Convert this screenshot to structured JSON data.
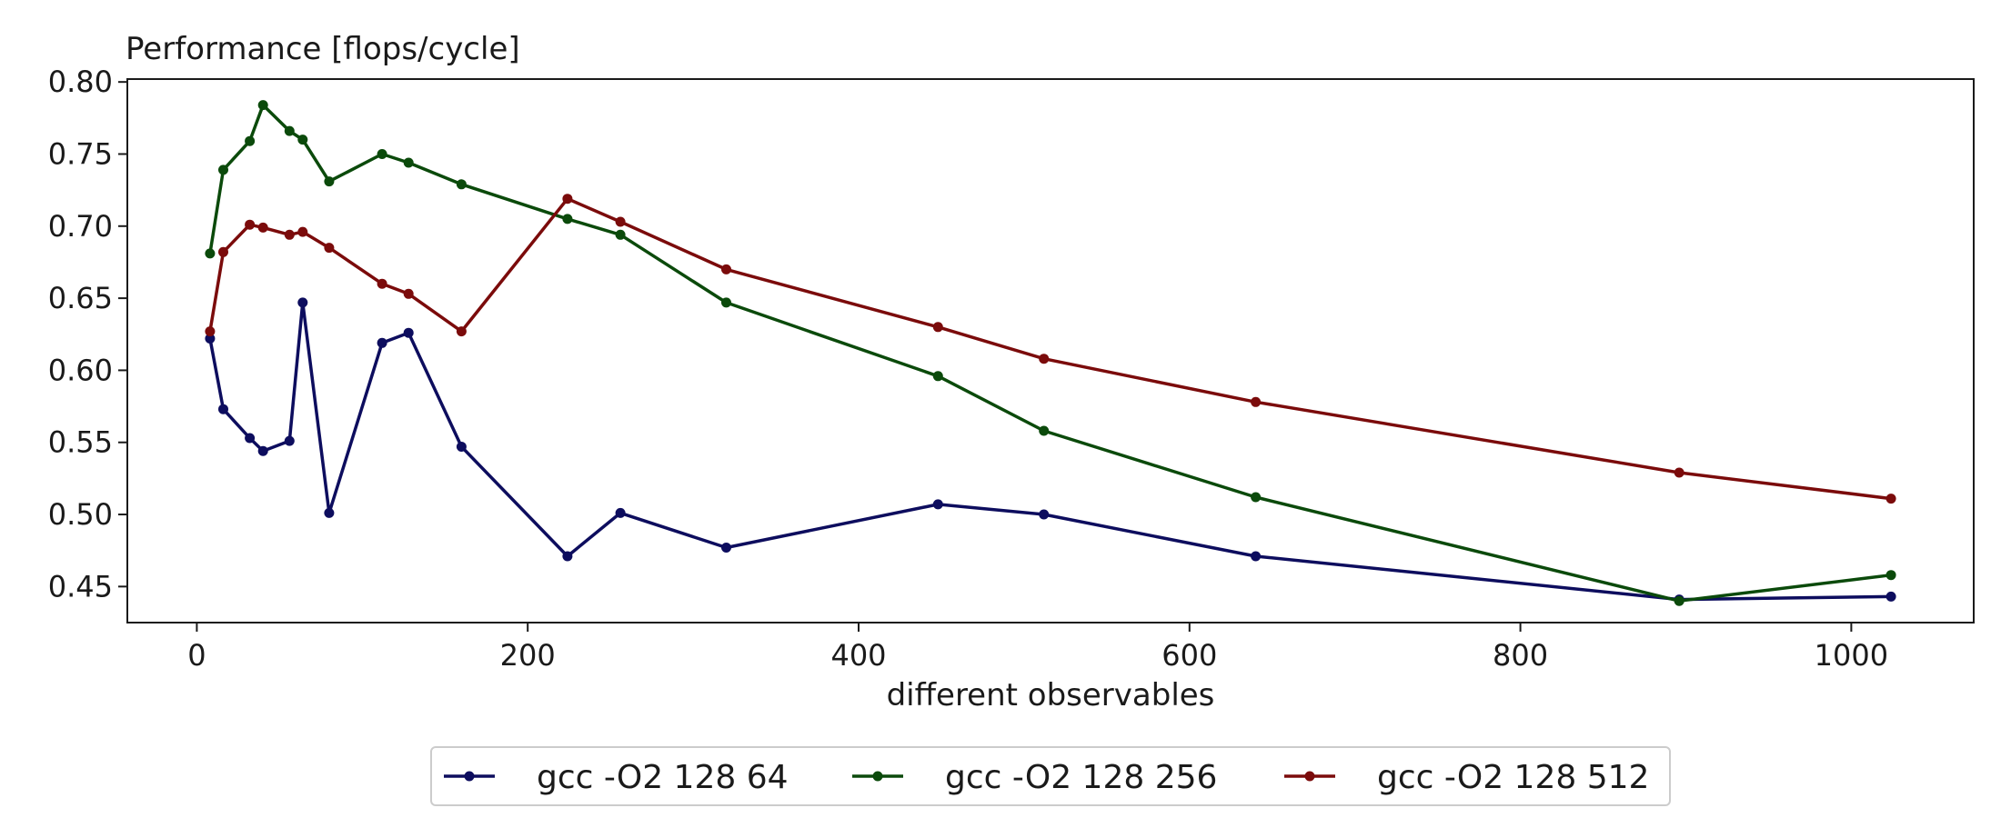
{
  "chart_data": {
    "type": "line",
    "title": "",
    "ylabel": "Performance [flops/cycle]",
    "xlabel": "different observables",
    "xlim": [
      -42,
      1074
    ],
    "ylim": [
      0.425,
      0.802
    ],
    "xticks": [
      0,
      200,
      400,
      600,
      800,
      1000
    ],
    "yticks": [
      0.45,
      0.5,
      0.55,
      0.6,
      0.65,
      0.7,
      0.75,
      0.8
    ],
    "grid": false,
    "legend_position": "bottom-center",
    "series": [
      {
        "name": "gcc -O2 128 64",
        "color": "#0d0d5e",
        "x": [
          8,
          16,
          32,
          40,
          56,
          64,
          80,
          112,
          128,
          160,
          224,
          256,
          320,
          448,
          512,
          640,
          896,
          1024
        ],
        "y": [
          0.622,
          0.573,
          0.553,
          0.544,
          0.551,
          0.647,
          0.501,
          0.619,
          0.626,
          0.547,
          0.471,
          0.501,
          0.477,
          0.507,
          0.5,
          0.471,
          0.441,
          0.443
        ]
      },
      {
        "name": "gcc -O2 128 256",
        "color": "#0b4a0b",
        "x": [
          8,
          16,
          32,
          40,
          56,
          64,
          80,
          112,
          128,
          160,
          224,
          256,
          320,
          448,
          512,
          640,
          896,
          1024
        ],
        "y": [
          0.681,
          0.739,
          0.759,
          0.784,
          0.766,
          0.76,
          0.731,
          0.75,
          0.744,
          0.729,
          0.705,
          0.694,
          0.647,
          0.596,
          0.558,
          0.512,
          0.44,
          0.458
        ]
      },
      {
        "name": "gcc -O2 128 512",
        "color": "#7b0b0b",
        "x": [
          8,
          16,
          32,
          40,
          56,
          64,
          80,
          112,
          128,
          160,
          224,
          256,
          320,
          448,
          512,
          640,
          896,
          1024
        ],
        "y": [
          0.627,
          0.682,
          0.701,
          0.699,
          0.694,
          0.696,
          0.685,
          0.66,
          0.653,
          0.627,
          0.719,
          0.703,
          0.67,
          0.63,
          0.608,
          0.578,
          0.529,
          0.511
        ]
      }
    ]
  }
}
